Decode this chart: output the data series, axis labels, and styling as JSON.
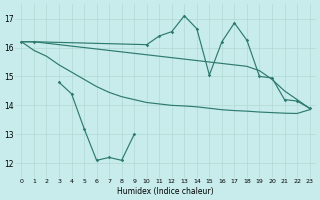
{
  "background_color": "#c8ecec",
  "grid_color": "#b0d8d0",
  "line_color": "#2d7a6e",
  "xlabel": "Humidex (Indice chaleur)",
  "ylim": [
    11.5,
    17.5
  ],
  "yticks": [
    12,
    13,
    14,
    15,
    16,
    17
  ],
  "xtick_labels": [
    "0",
    "1",
    "2",
    "3",
    "4",
    "5",
    "6",
    "7",
    "8",
    "9",
    "10",
    "11",
    "12",
    "13",
    "14",
    "15",
    "16",
    "17",
    "18",
    "19",
    "20",
    "21",
    "22",
    "23"
  ],
  "line_upper_x": [
    0,
    1,
    2,
    3,
    4,
    5,
    6,
    7,
    8,
    9,
    10,
    11,
    12,
    13,
    14,
    15,
    16,
    17,
    18,
    19,
    20,
    21,
    22,
    23
  ],
  "line_upper_y": [
    16.2,
    16.2,
    16.15,
    16.1,
    16.05,
    16.0,
    15.95,
    15.9,
    15.85,
    15.8,
    15.75,
    15.7,
    15.65,
    15.6,
    15.55,
    15.5,
    15.45,
    15.4,
    15.35,
    15.2,
    14.9,
    14.5,
    14.2,
    13.9
  ],
  "line_mid_x": [
    0,
    1,
    2,
    3,
    4,
    5,
    6,
    7,
    8,
    9,
    10,
    11,
    12,
    13,
    14,
    15,
    16,
    17,
    18,
    19,
    20,
    21,
    22,
    23
  ],
  "line_mid_y": [
    16.2,
    15.9,
    15.7,
    15.4,
    15.15,
    14.9,
    14.65,
    14.45,
    14.3,
    14.2,
    14.1,
    14.05,
    14.0,
    13.98,
    13.95,
    13.9,
    13.85,
    13.82,
    13.8,
    13.77,
    13.75,
    13.73,
    13.72,
    13.85
  ],
  "line_marker_x": [
    0,
    1,
    10,
    11,
    12,
    13,
    14,
    15,
    16,
    17,
    18,
    19,
    20,
    21,
    22,
    23
  ],
  "line_marker_y": [
    16.2,
    16.2,
    16.1,
    16.4,
    16.55,
    17.1,
    16.65,
    15.05,
    16.2,
    16.85,
    16.25,
    15.0,
    14.95,
    14.2,
    14.15,
    13.9
  ],
  "line_bottom_x": [
    3,
    4,
    5,
    6,
    7,
    8,
    9
  ],
  "line_bottom_y": [
    14.8,
    14.4,
    13.2,
    12.1,
    12.2,
    12.1,
    13.0
  ]
}
